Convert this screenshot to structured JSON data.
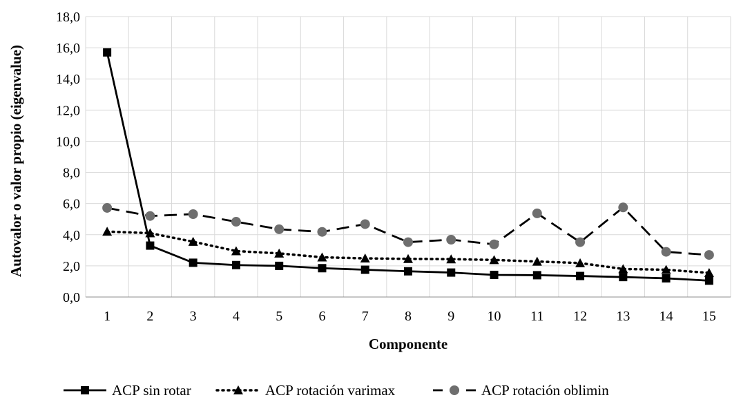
{
  "chart_data": {
    "type": "line",
    "xlabel": "Componente",
    "ylabel": "Autovalor o valor propio (eigenvalue)",
    "x": [
      "1",
      "2",
      "3",
      "4",
      "5",
      "6",
      "7",
      "8",
      "9",
      "10",
      "11",
      "12",
      "13",
      "14",
      "15"
    ],
    "ylim": [
      0,
      18
    ],
    "yticks": [
      "0,0",
      "2,0",
      "4,0",
      "6,0",
      "8,0",
      "10,0",
      "12,0",
      "14,0",
      "16,0",
      "18,0"
    ],
    "grid": true,
    "legend_position": "bottom",
    "series": [
      {
        "name": "ACP sin rotar",
        "values": [
          15.7,
          3.3,
          2.2,
          2.05,
          2.0,
          1.85,
          1.75,
          1.65,
          1.57,
          1.42,
          1.4,
          1.35,
          1.28,
          1.2,
          1.05
        ],
        "marker": "square",
        "line": "solid",
        "color": "#000000"
      },
      {
        "name": "ACP rotación varimax",
        "values": [
          4.2,
          4.1,
          3.55,
          2.95,
          2.8,
          2.55,
          2.48,
          2.45,
          2.43,
          2.38,
          2.28,
          2.18,
          1.8,
          1.75,
          1.55
        ],
        "marker": "triangle",
        "line": "dotted",
        "color": "#000000"
      },
      {
        "name": "ACP rotación oblimin",
        "values": [
          5.72,
          5.2,
          5.32,
          4.83,
          4.35,
          4.18,
          4.68,
          3.52,
          3.68,
          3.38,
          5.37,
          3.52,
          5.75,
          2.9,
          2.7
        ],
        "marker": "circle",
        "line": "dashed",
        "color": "#000000",
        "marker_color": "#6e6e6e"
      }
    ]
  }
}
